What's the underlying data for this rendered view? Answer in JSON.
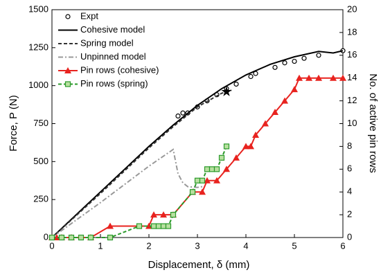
{
  "chart_data": {
    "type": "line",
    "xlabel": "Displacement, δ (mm)",
    "ylabel": "Force, P (N)",
    "y2label": "No. of active pin rows",
    "xlim": [
      0,
      6
    ],
    "xticks": [
      0,
      1,
      2,
      3,
      4,
      5,
      6
    ],
    "ylim": [
      0,
      1500
    ],
    "yticks": [
      0,
      250,
      500,
      750,
      1000,
      1250,
      1500
    ],
    "y2lim": [
      0,
      20
    ],
    "y2ticks": [
      0,
      2,
      4,
      6,
      8,
      10,
      12,
      14,
      16,
      18,
      20
    ],
    "legend": "upper left",
    "series": [
      {
        "name": "Expt",
        "color": "#000000",
        "line": "none",
        "marker": "circle",
        "axis": "y",
        "x": [
          2.6,
          2.7,
          2.8,
          3.0,
          3.2,
          3.4,
          3.6,
          3.8,
          4.1,
          4.2,
          4.6,
          4.8,
          5.0,
          5.2,
          5.5,
          6.0
        ],
        "values": [
          800,
          820,
          820,
          860,
          900,
          940,
          980,
          1010,
          1060,
          1080,
          1120,
          1150,
          1160,
          1180,
          1200,
          1230
        ]
      },
      {
        "name": "Cohesive model",
        "color": "#000000",
        "line": "solid",
        "marker": "none",
        "axis": "y",
        "x": [
          0,
          0.5,
          1,
          1.5,
          2,
          2.5,
          3,
          3.5,
          4,
          4.5,
          5,
          5.5,
          5.8,
          6
        ],
        "values": [
          0,
          150,
          300,
          450,
          600,
          740,
          870,
          980,
          1070,
          1140,
          1190,
          1225,
          1215,
          1230
        ]
      },
      {
        "name": "Spring model",
        "color": "#333333",
        "line": "dash",
        "marker": "none",
        "axis": "y",
        "x": [
          0,
          1,
          2,
          2.5,
          3,
          3.5,
          3.7
        ],
        "values": [
          0,
          290,
          590,
          730,
          860,
          950,
          970
        ]
      },
      {
        "name": "Unpinned model",
        "color": "#999999",
        "line": "dashdot",
        "marker": "none",
        "axis": "y",
        "x": [
          0,
          1,
          2,
          2.5,
          2.55,
          2.6,
          2.7,
          2.8,
          3,
          3.1
        ],
        "values": [
          0,
          230,
          470,
          580,
          500,
          420,
          360,
          335,
          330,
          335
        ]
      },
      {
        "name": "Pin rows (cohesive)",
        "color": "#e8231f",
        "line": "solid",
        "marker": "triangle",
        "axis": "y2",
        "x": [
          0,
          0.1,
          0.2,
          0.4,
          0.8,
          1.2,
          2,
          2.1,
          2.3,
          2.5,
          2.9,
          3.1,
          3.2,
          3.4,
          3.6,
          3.8,
          4,
          4.1,
          4.2,
          4.4,
          4.6,
          4.8,
          5,
          5.1,
          5.3,
          5.5,
          5.8,
          6
        ],
        "values": [
          0,
          0,
          0,
          0,
          0,
          1,
          1,
          2,
          2,
          2,
          4,
          4,
          5,
          5,
          6,
          7,
          8,
          8,
          9,
          10,
          11,
          12,
          13,
          14,
          14,
          14,
          14,
          14
        ]
      },
      {
        "name": "Pin rows (spring)",
        "color": "#2a9a2a",
        "line": "dash",
        "marker": "square",
        "axis": "y2",
        "x": [
          0,
          0.2,
          0.4,
          0.6,
          0.8,
          1.2,
          1.8,
          2.1,
          2.2,
          2.3,
          2.4,
          2.5,
          2.9,
          3.0,
          3.1,
          3.2,
          3.3,
          3.4,
          3.5,
          3.6
        ],
        "values": [
          0,
          0,
          0,
          0,
          0,
          0,
          1,
          1,
          1,
          1,
          1,
          2,
          4,
          5,
          5,
          6,
          6,
          6,
          7,
          8
        ]
      }
    ],
    "markers": [
      {
        "x": 3.6,
        "y": 960,
        "symbol": "star"
      }
    ]
  }
}
